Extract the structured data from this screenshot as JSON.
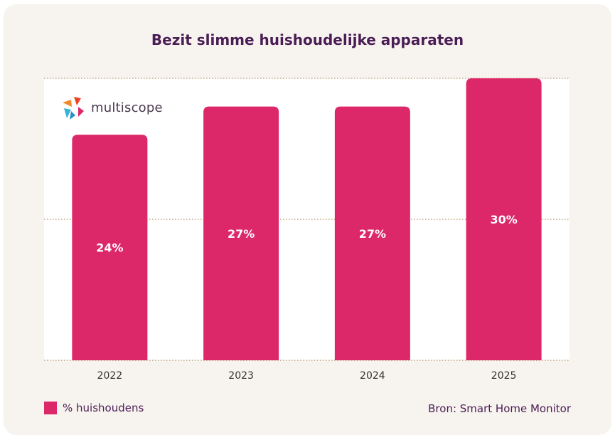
{
  "chart_data": {
    "type": "bar",
    "title": "Bezit slimme huishoudelijke apparaten",
    "categories": [
      "2022",
      "2023",
      "2024",
      "2025"
    ],
    "series": [
      {
        "name": "% huishoudens",
        "values": [
          24,
          27,
          27,
          30
        ]
      }
    ],
    "data_labels": [
      "24%",
      "27%",
      "27%",
      "30%"
    ],
    "ylim": [
      0,
      30
    ],
    "grid": true,
    "legend_position": "bottom-left",
    "bar_color": "#dc2868",
    "gridline_color": "#a07a3c"
  },
  "source": "Bron: Smart Home Monitor",
  "logo": {
    "text": "multiscope",
    "icon": "multiscope-logo-icon"
  }
}
